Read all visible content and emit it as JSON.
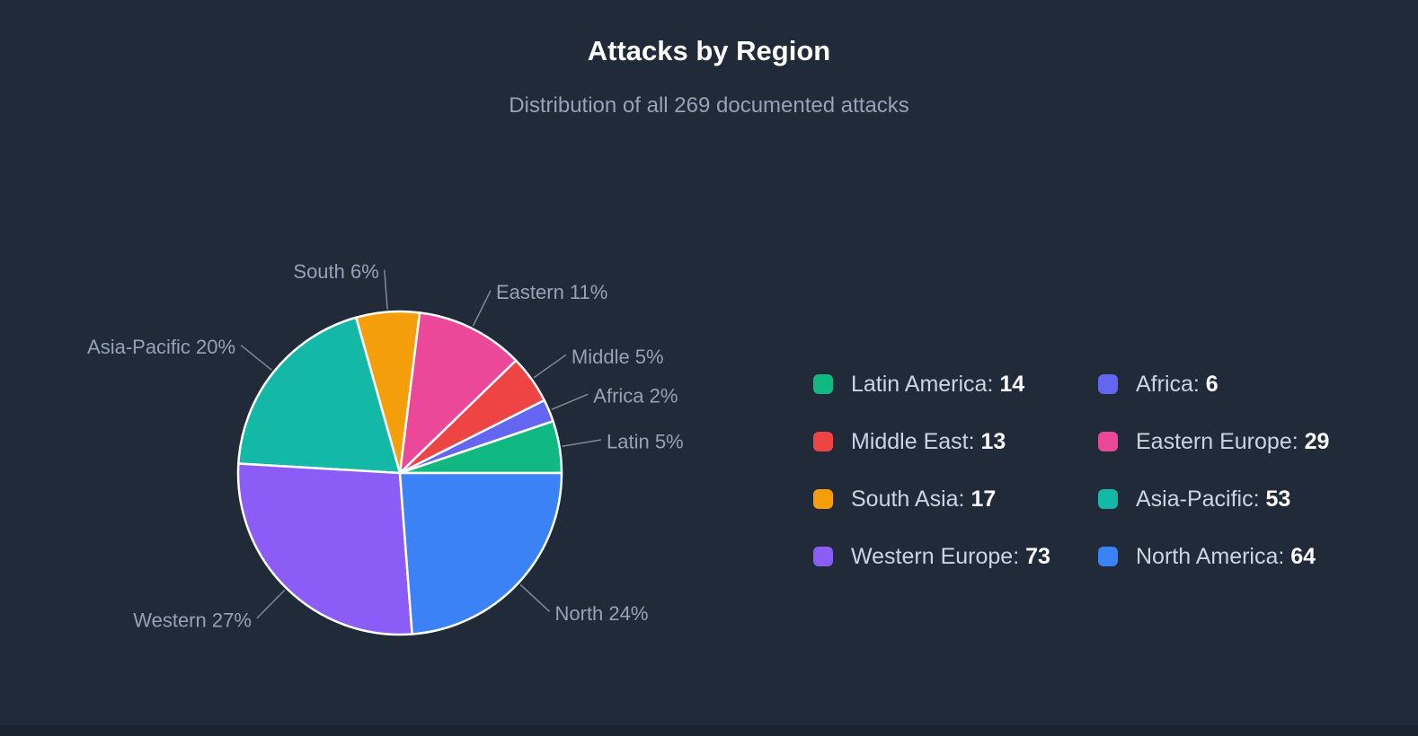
{
  "theme": {
    "background": "#1b2330",
    "card_background": "#212a38",
    "title_color": "#ffffff",
    "muted_text_color": "#94a3b8",
    "legend_text_color": "#cbd5e1",
    "legend_value_color": "#ffffff",
    "connector_color": "#94a3b8",
    "slice_border_color": "#ffffff"
  },
  "chart_data": {
    "type": "pie",
    "title": "Attacks by Region",
    "subtitle": "Distribution of all 269 documented attacks",
    "total": 269,
    "direction": "counterclockwise",
    "start_angle_deg": 0,
    "legend_position": "right",
    "slices": [
      {
        "label": "Latin America",
        "outlabel": "Latin",
        "value": 14,
        "percent_label": "5%",
        "color": "#10b981"
      },
      {
        "label": "Africa",
        "outlabel": "Africa",
        "value": 6,
        "percent_label": "2%",
        "color": "#6366f1"
      },
      {
        "label": "Middle East",
        "outlabel": "Middle",
        "value": 13,
        "percent_label": "5%",
        "color": "#ef4444"
      },
      {
        "label": "Eastern Europe",
        "outlabel": "Eastern",
        "value": 29,
        "percent_label": "11%",
        "color": "#ec4899"
      },
      {
        "label": "South Asia",
        "outlabel": "South",
        "value": 17,
        "percent_label": "6%",
        "color": "#f59e0b"
      },
      {
        "label": "Asia-Pacific",
        "outlabel": "Asia-Pacific",
        "value": 53,
        "percent_label": "20%",
        "color": "#14b8a6"
      },
      {
        "label": "Western Europe",
        "outlabel": "Western",
        "value": 73,
        "percent_label": "27%",
        "color": "#8b5cf6"
      },
      {
        "label": "North America",
        "outlabel": "North",
        "value": 64,
        "percent_label": "24%",
        "color": "#3b82f6"
      }
    ]
  }
}
